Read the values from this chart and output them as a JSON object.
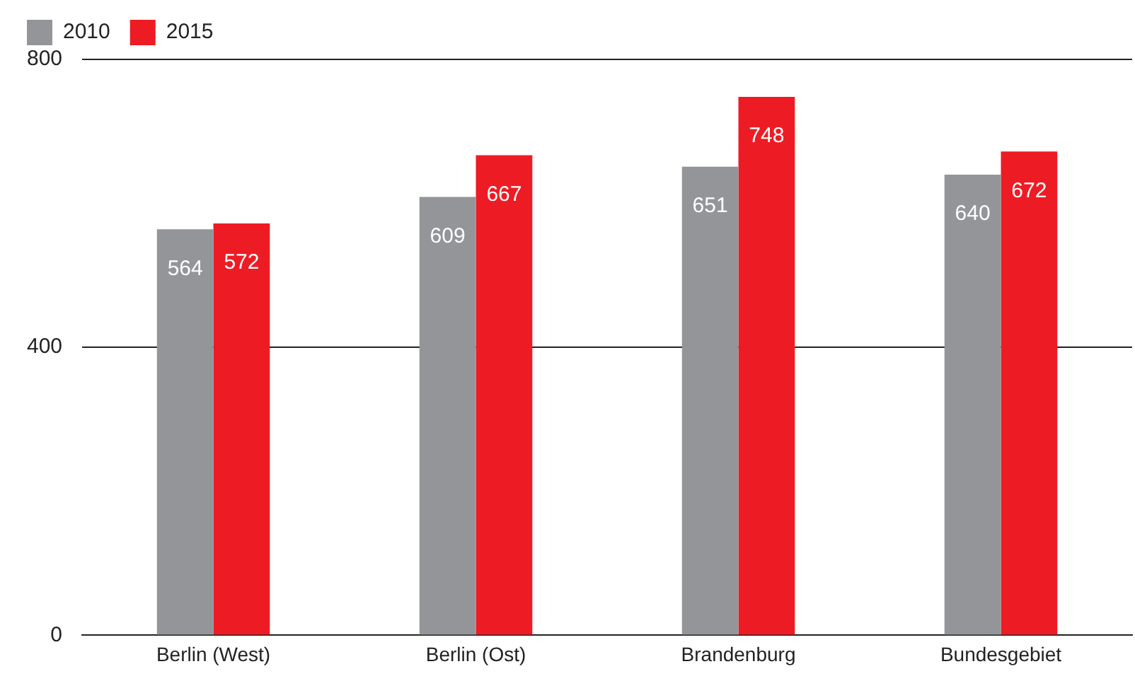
{
  "chart_data": {
    "type": "bar",
    "categories": [
      "Berlin (West)",
      "Berlin (Ost)",
      "Brandenburg",
      "Bundesgebiet"
    ],
    "series": [
      {
        "name": "2010",
        "color": "#939598",
        "values": [
          564,
          609,
          651,
          640
        ]
      },
      {
        "name": "2015",
        "color": "#ed1c24",
        "values": [
          572,
          667,
          748,
          672
        ]
      }
    ],
    "ylim": [
      0,
      800
    ],
    "yticks": [
      0,
      400,
      800
    ],
    "grid": "y",
    "legend": "top left",
    "data_labels": true
  }
}
